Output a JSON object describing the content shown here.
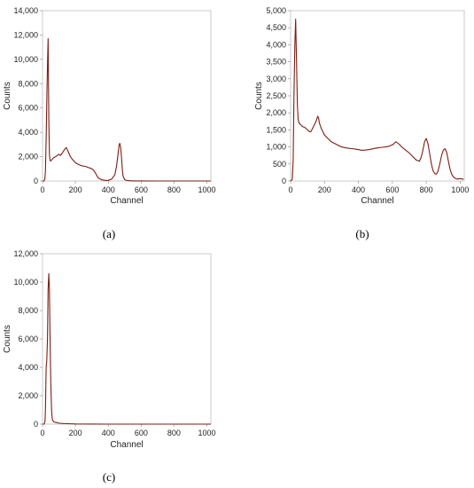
{
  "colors": {
    "series": "#7a1e14",
    "frame": "#bfbfbf",
    "background": "#ffffff"
  },
  "chart_data": [
    {
      "type": "line",
      "panel_label": "(a)",
      "xlabel": "Channel",
      "ylabel": "Counts",
      "xlim": [
        0,
        1024
      ],
      "ylim": [
        0,
        14000
      ],
      "xticks": [
        0,
        200,
        400,
        600,
        800,
        1000
      ],
      "xtick_labels": [
        "0",
        "200",
        "400",
        "600",
        "800",
        "1000"
      ],
      "yticks": [
        0,
        2000,
        4000,
        6000,
        8000,
        10000,
        12000,
        14000
      ],
      "ytick_labels": [
        "0",
        "2,000",
        "4,000",
        "6,000",
        "8,000",
        "10,000",
        "12,000",
        "14,000"
      ],
      "grid": false,
      "series": [
        {
          "x": [
            0,
            8,
            14,
            18,
            22,
            26,
            30,
            34,
            38,
            42,
            46,
            50,
            60,
            70,
            80,
            90,
            100,
            110,
            120,
            130,
            140,
            145,
            150,
            160,
            170,
            180,
            200,
            220,
            240,
            260,
            280,
            300,
            310,
            320,
            330,
            340,
            360,
            380,
            400,
            420,
            440,
            450,
            460,
            465,
            470,
            475,
            480,
            485,
            490,
            500,
            520,
            550,
            600,
            700,
            800,
            900,
            1000,
            1024
          ],
          "y": [
            0,
            0,
            150,
            800,
            3500,
            6500,
            9500,
            11700,
            5000,
            2200,
            1700,
            1650,
            1800,
            1950,
            2000,
            2100,
            2200,
            2100,
            2300,
            2500,
            2700,
            2750,
            2600,
            2300,
            2000,
            1800,
            1500,
            1350,
            1250,
            1200,
            1100,
            1000,
            900,
            700,
            450,
            250,
            100,
            50,
            50,
            150,
            500,
            1200,
            2300,
            2900,
            3100,
            2800,
            2000,
            1000,
            400,
            100,
            30,
            10,
            5,
            0,
            0,
            0,
            0,
            0
          ]
        }
      ]
    },
    {
      "type": "line",
      "panel_label": "(b)",
      "xlabel": "Channel",
      "ylabel": "Counts",
      "xlim": [
        0,
        1024
      ],
      "ylim": [
        0,
        5000
      ],
      "xticks": [
        0,
        200,
        400,
        600,
        800,
        1000
      ],
      "xtick_labels": [
        "0",
        "200",
        "400",
        "600",
        "800",
        "1000"
      ],
      "yticks": [
        0,
        500,
        1000,
        1500,
        2000,
        2500,
        3000,
        3500,
        4000,
        4500,
        5000
      ],
      "ytick_labels": [
        "0",
        "500",
        "1,000",
        "1,500",
        "2,000",
        "2,500",
        "3,000",
        "3,500",
        "4,000",
        "4,500",
        "5,000"
      ],
      "grid": false,
      "series": [
        {
          "x": [
            0,
            10,
            15,
            20,
            25,
            30,
            35,
            40,
            45,
            50,
            60,
            70,
            80,
            90,
            100,
            110,
            120,
            130,
            140,
            150,
            160,
            165,
            170,
            180,
            190,
            200,
            220,
            240,
            260,
            280,
            300,
            320,
            340,
            360,
            380,
            400,
            420,
            440,
            460,
            480,
            500,
            520,
            540,
            560,
            580,
            600,
            610,
            620,
            630,
            640,
            660,
            680,
            700,
            720,
            740,
            750,
            760,
            770,
            780,
            790,
            800,
            810,
            820,
            830,
            840,
            850,
            860,
            870,
            880,
            890,
            900,
            910,
            920,
            930,
            940,
            950,
            960,
            970,
            980,
            990,
            1000,
            1010,
            1020
          ],
          "y": [
            0,
            50,
            600,
            2500,
            4000,
            4750,
            3500,
            2200,
            1800,
            1700,
            1650,
            1600,
            1580,
            1550,
            1500,
            1450,
            1450,
            1550,
            1650,
            1750,
            1900,
            1850,
            1700,
            1550,
            1450,
            1350,
            1250,
            1150,
            1100,
            1050,
            1000,
            980,
            960,
            950,
            940,
            920,
            900,
            910,
            920,
            940,
            960,
            980,
            990,
            1000,
            1020,
            1060,
            1100,
            1150,
            1120,
            1080,
            980,
            900,
            820,
            720,
            620,
            600,
            580,
            700,
            900,
            1150,
            1250,
            1100,
            800,
            500,
            300,
            220,
            200,
            300,
            500,
            750,
            900,
            950,
            850,
            600,
            350,
            200,
            120,
            80,
            60,
            60,
            70,
            60,
            50
          ]
        }
      ]
    },
    {
      "type": "line",
      "panel_label": "(c)",
      "xlabel": "Channel",
      "ylabel": "Counts",
      "xlim": [
        0,
        1024
      ],
      "ylim": [
        0,
        12000
      ],
      "xticks": [
        0,
        200,
        400,
        600,
        800,
        1000
      ],
      "xtick_labels": [
        "0",
        "200",
        "400",
        "600",
        "800",
        "1000"
      ],
      "yticks": [
        0,
        2000,
        4000,
        6000,
        8000,
        10000,
        12000
      ],
      "ytick_labels": [
        "0",
        "2,000",
        "4,000",
        "6,000",
        "8,000",
        "10,000",
        "12,000"
      ],
      "grid": false,
      "series": [
        {
          "x": [
            0,
            10,
            15,
            18,
            22,
            26,
            30,
            34,
            38,
            42,
            46,
            50,
            55,
            60,
            70,
            80,
            90,
            100,
            150,
            200,
            300,
            400,
            600,
            800,
            1000,
            1024
          ],
          "y": [
            0,
            0,
            200,
            1000,
            4000,
            4500,
            6000,
            9500,
            10600,
            9500,
            6000,
            3000,
            1000,
            300,
            150,
            120,
            100,
            60,
            30,
            10,
            5,
            0,
            0,
            0,
            0,
            0
          ]
        }
      ]
    }
  ]
}
